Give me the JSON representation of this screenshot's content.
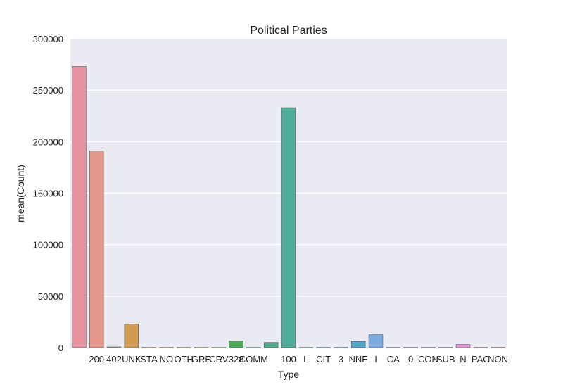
{
  "chart_data": {
    "type": "bar",
    "title": "Political Parties",
    "xlabel": "Type",
    "ylabel": "mean(Count)",
    "ylim": [
      0,
      300000
    ],
    "yticks": [
      0,
      50000,
      100000,
      150000,
      200000,
      250000,
      300000
    ],
    "grid": true,
    "categories": [
      "",
      "200",
      "402",
      "UNK",
      "STA",
      "NO",
      "OTH",
      "GRE",
      "CRV",
      "328",
      "COMM",
      "",
      "100",
      "L",
      "CIT",
      "3",
      "NNE",
      "I",
      "CA",
      "0",
      "CON",
      "SUB",
      "N",
      "PAC",
      "NON"
    ],
    "values": [
      273000,
      191000,
      700,
      23000,
      200,
      200,
      200,
      200,
      200,
      6500,
      200,
      5000,
      233000,
      200,
      200,
      200,
      6000,
      12500,
      200,
      200,
      200,
      200,
      3000,
      200,
      200
    ],
    "colors": [
      "#e8909f",
      "#e6978c",
      "#d9966f",
      "#d19c52",
      "#c3a252",
      "#b6a94f",
      "#a8ac4e",
      "#97b04c",
      "#7cb652",
      "#4cac56",
      "#4fb07a",
      "#4eae8c",
      "#4dac9a",
      "#4eac9f",
      "#50abac",
      "#52aab8",
      "#4fa6c6",
      "#7cacde",
      "#a3b2e1",
      "#b8ace6",
      "#cca7e6",
      "#d9a0e2",
      "#e095d6",
      "#e497c6",
      "#e794b5"
    ]
  }
}
